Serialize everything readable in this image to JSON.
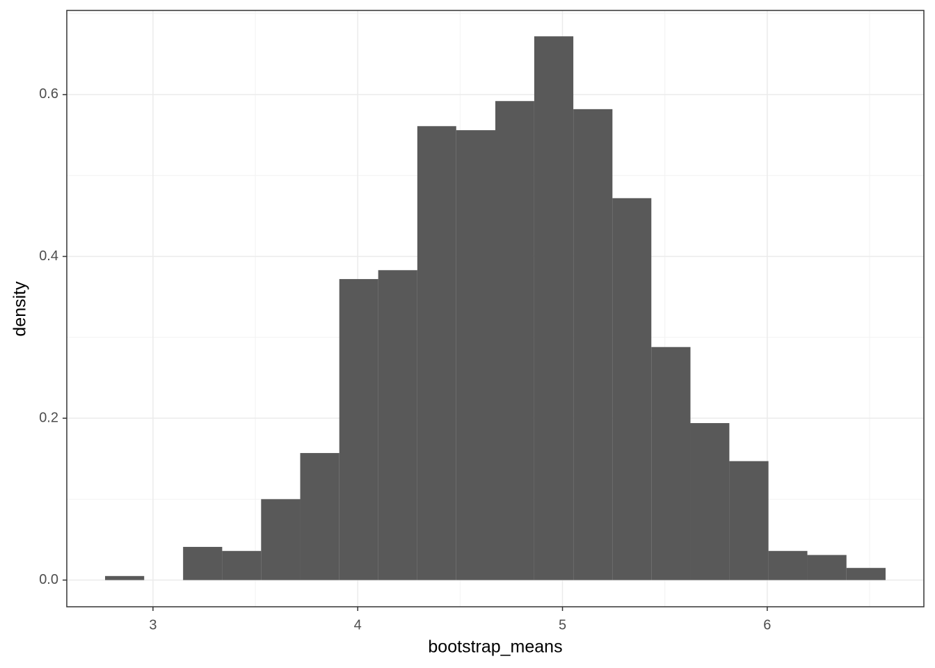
{
  "chart_data": {
    "type": "histogram",
    "x_label": "bootstrap_means",
    "y_label": "density",
    "bins": [
      2.766,
      2.957,
      3.147,
      3.338,
      3.528,
      3.719,
      3.91,
      4.1,
      4.291,
      4.481,
      4.672,
      4.862,
      5.053,
      5.244,
      5.434,
      5.625,
      5.815,
      6.006,
      6.196,
      6.387,
      6.578
    ],
    "values": [
      0.005,
      0,
      0.041,
      0.036,
      0.1,
      0.157,
      0.372,
      0.383,
      0.561,
      0.556,
      0.592,
      0.672,
      0.582,
      0.472,
      0.288,
      0.194,
      0.147,
      0.036,
      0.031,
      0.015
    ],
    "color": "#595959",
    "xlim": [
      2.579,
      6.765
    ],
    "ylim": [
      -0.033,
      0.704
    ],
    "xticks": [
      3,
      4,
      5,
      6
    ],
    "yticks": [
      {
        "value": 0,
        "label": "0.0"
      },
      0.2,
      0.4,
      0.6
    ],
    "grid": true
  }
}
